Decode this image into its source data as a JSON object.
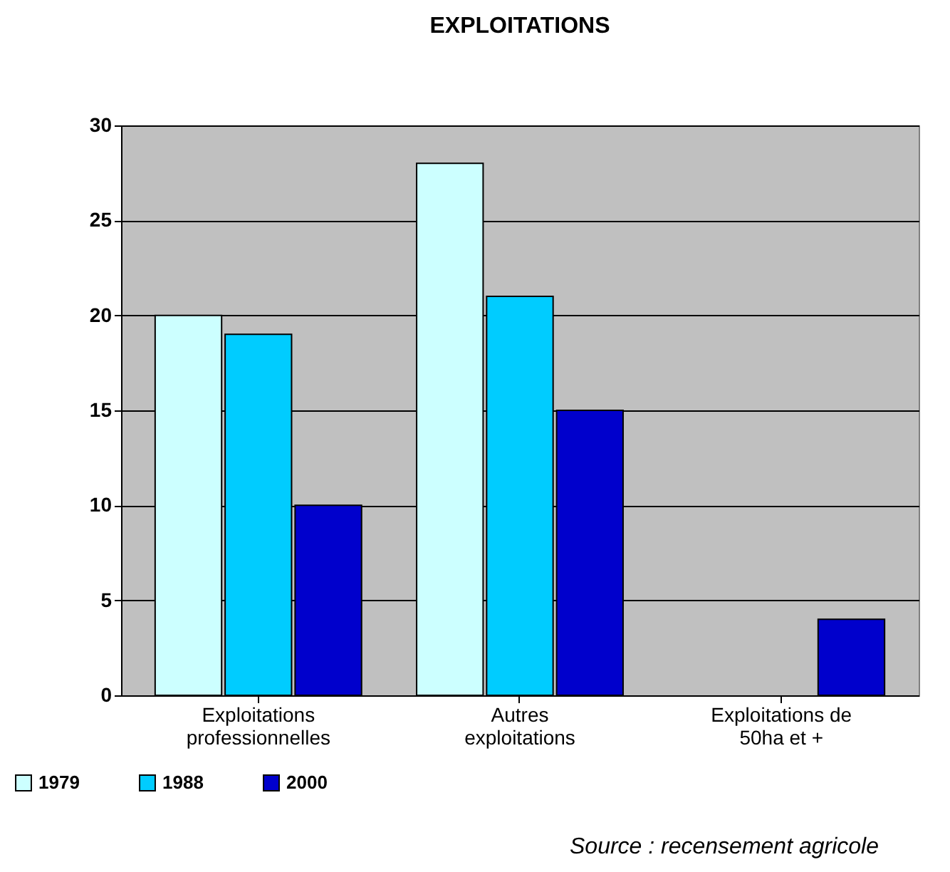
{
  "chart_data": {
    "type": "bar",
    "title": "EXPLOITATIONS",
    "categories": [
      "Exploitations professionnelles",
      "Autres exploitations",
      "Exploitations de 50ha et +"
    ],
    "series": [
      {
        "name": "1979",
        "color": "#ccffff",
        "values": [
          20,
          28,
          null
        ]
      },
      {
        "name": "1988",
        "color": "#00ccff",
        "values": [
          19,
          21,
          null
        ]
      },
      {
        "name": "2000",
        "color": "#0000cc",
        "values": [
          10,
          15,
          4
        ]
      }
    ],
    "ylim": [
      0,
      30
    ],
    "yticks": [
      0,
      5,
      10,
      15,
      20,
      25,
      30
    ],
    "grid": "y",
    "legend": "bottom left",
    "annotations": [
      "Source : recensement agricole"
    ]
  }
}
